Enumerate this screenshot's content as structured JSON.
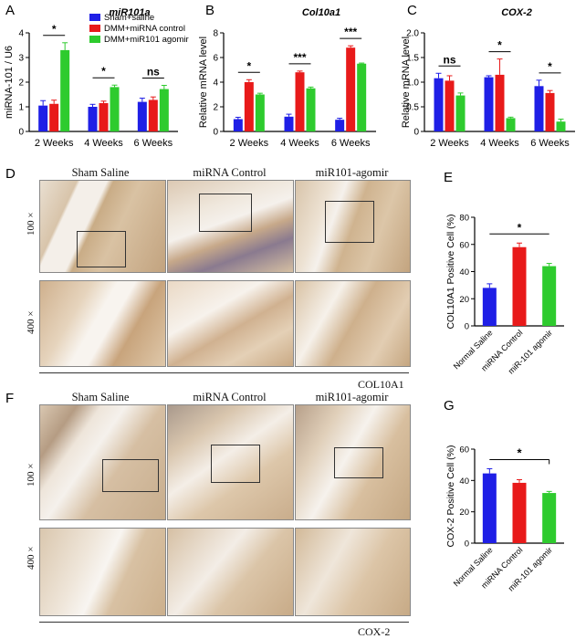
{
  "colors": {
    "blue": "#1f1fe6",
    "red": "#e81a1a",
    "green": "#2ecb2e"
  },
  "charts": {
    "A": {
      "letter": "A",
      "type": "bar",
      "title": "miR101a",
      "ylabel": "miRNA-101 / U6",
      "categories": [
        "2 Weeks",
        "4 Weeks",
        "6 Weeks"
      ],
      "ylim": [
        0,
        4
      ],
      "yticks": [
        "0",
        "1",
        "2",
        "3",
        "4"
      ],
      "legend": [
        "Sham+saline",
        "DMM+miRNA control",
        "DMM+miR101 agomir"
      ],
      "series": [
        {
          "name": "Sham+saline",
          "values": [
            1.05,
            1.0,
            1.2
          ],
          "err": [
            0.2,
            0.1,
            0.15
          ]
        },
        {
          "name": "DMM+miRNA control",
          "values": [
            1.12,
            1.15,
            1.28
          ],
          "err": [
            0.15,
            0.08,
            0.12
          ]
        },
        {
          "name": "DMM+miR101 agomir",
          "values": [
            3.3,
            1.8,
            1.72
          ],
          "err": [
            0.3,
            0.08,
            0.15
          ]
        }
      ],
      "sig": [
        "*",
        "*",
        "ns"
      ]
    },
    "B": {
      "letter": "B",
      "type": "bar",
      "title": "Col10a1",
      "ylabel": "Relative mRNA level",
      "categories": [
        "2 Weeks",
        "4 Weeks",
        "6 Weeks"
      ],
      "ylim": [
        0,
        8
      ],
      "yticks": [
        "0",
        "2",
        "4",
        "6",
        "8"
      ],
      "series": [
        {
          "values": [
            1.0,
            1.2,
            0.95
          ],
          "err": [
            0.15,
            0.2,
            0.12
          ]
        },
        {
          "values": [
            4.0,
            4.8,
            6.8
          ],
          "err": [
            0.2,
            0.1,
            0.15
          ]
        },
        {
          "values": [
            3.0,
            3.5,
            5.5
          ],
          "err": [
            0.1,
            0.1,
            0.05
          ]
        }
      ],
      "sig": [
        "*",
        "***",
        "***"
      ]
    },
    "C": {
      "letter": "C",
      "type": "bar",
      "title": "COX-2",
      "ylabel": "Relative mRNA level",
      "categories": [
        "2 Weeks",
        "4 Weeks",
        "6 Weeks"
      ],
      "ylim": [
        0,
        2.0
      ],
      "yticks": [
        "0",
        "0.5",
        "1.0",
        "1.5",
        "2.0"
      ],
      "series": [
        {
          "values": [
            1.08,
            1.1,
            0.92
          ],
          "err": [
            0.1,
            0.03,
            0.12
          ]
        },
        {
          "values": [
            1.03,
            1.15,
            0.78
          ],
          "err": [
            0.1,
            0.32,
            0.05
          ]
        },
        {
          "values": [
            0.73,
            0.27,
            0.2
          ],
          "err": [
            0.05,
            0.02,
            0.05
          ]
        }
      ],
      "sig": [
        "ns",
        "*",
        "*"
      ]
    },
    "E": {
      "letter": "E",
      "type": "bar",
      "ylabel": "COL10A1 Positive Cell (%)",
      "categories": [
        "Normal Saline",
        "miRNA Control",
        "miR-101 agomir"
      ],
      "ylim": [
        0,
        80
      ],
      "yticks": [
        "0",
        "20",
        "40",
        "60",
        "80"
      ],
      "values": [
        28,
        58,
        44
      ],
      "err": [
        3,
        3,
        2
      ],
      "sig": "*"
    },
    "G": {
      "letter": "G",
      "type": "bar",
      "ylabel": "COX-2 Positive Cell (%)",
      "categories": [
        "Normal Saline",
        "miRNA Control",
        "miR-101 agomir"
      ],
      "ylim": [
        0,
        60
      ],
      "yticks": [
        "0",
        "20",
        "40",
        "60"
      ],
      "values": [
        44.5,
        38.5,
        32
      ],
      "err": [
        3,
        2,
        1
      ],
      "sig": "*"
    }
  },
  "panel_D": {
    "letter": "D",
    "columns": [
      "Sham Saline",
      "miRNA Control",
      "miR101-agomir"
    ],
    "rows": [
      "100 ×",
      "400 ×"
    ],
    "stain": "COL10A1"
  },
  "panel_F": {
    "letter": "F",
    "columns": [
      "Sham Saline",
      "miRNA Control",
      "miR101-agomir"
    ],
    "rows": [
      "100 ×",
      "400 ×"
    ],
    "stain": "COX-2"
  }
}
